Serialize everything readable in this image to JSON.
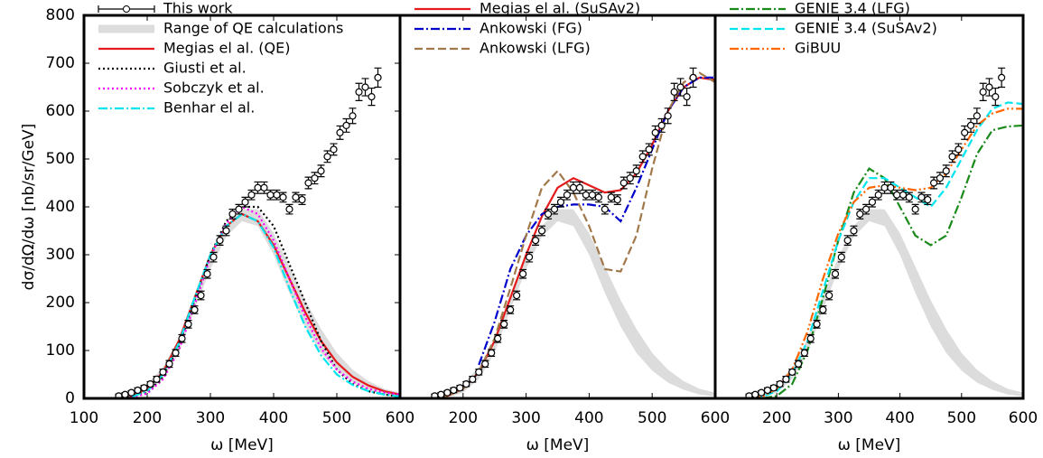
{
  "chart_data": [
    {
      "type": "line",
      "y_label": "dσ/dΩ/dω   [nb/sr/GeV]",
      "x_label": "ω    [MeV]",
      "legend": "upper left",
      "xlim": [
        100,
        600
      ],
      "xticks": [
        100,
        200,
        300,
        400,
        500,
        600
      ],
      "ylim": [
        0,
        800
      ],
      "yticks": [
        0,
        100,
        200,
        300,
        400,
        500,
        600,
        700,
        800
      ],
      "x": [
        125,
        150,
        175,
        200,
        225,
        250,
        275,
        300,
        325,
        350,
        375,
        400,
        425,
        450,
        475,
        500,
        525,
        550,
        575,
        600
      ],
      "series": [
        {
          "name": "This work",
          "type": "points",
          "color": "#000000",
          "x": [
            155,
            165,
            175,
            185,
            195,
            205,
            215,
            225,
            235,
            245,
            255,
            265,
            275,
            285,
            295,
            305,
            315,
            325,
            335,
            345,
            355,
            365,
            375,
            385,
            395,
            405,
            415,
            425,
            435,
            445,
            455,
            465,
            475,
            485,
            495,
            505,
            515,
            525,
            535,
            545,
            555,
            565
          ],
          "values": [
            5,
            8,
            12,
            17,
            22,
            30,
            40,
            55,
            72,
            95,
            125,
            155,
            185,
            215,
            260,
            295,
            330,
            350,
            385,
            395,
            410,
            425,
            440,
            440,
            425,
            425,
            420,
            395,
            420,
            415,
            450,
            460,
            475,
            505,
            520,
            555,
            570,
            590,
            640,
            650,
            630,
            670
          ],
          "errors": [
            4,
            4,
            4,
            5,
            5,
            5,
            6,
            6,
            7,
            7,
            8,
            8,
            8,
            9,
            9,
            10,
            10,
            10,
            10,
            10,
            10,
            10,
            12,
            12,
            10,
            10,
            10,
            10,
            10,
            10,
            12,
            12,
            12,
            12,
            12,
            14,
            14,
            16,
            18,
            18,
            18,
            20
          ]
        },
        {
          "name": "Range of QE calculations",
          "type": "band",
          "color": "#dcdcdc",
          "upper": [
            1,
            2,
            8,
            30,
            65,
            125,
            215,
            295,
            360,
            395,
            395,
            345,
            275,
            205,
            145,
            95,
            60,
            36,
            20,
            12
          ],
          "lower": [
            0,
            0,
            2,
            12,
            40,
            95,
            185,
            270,
            338,
            370,
            360,
            300,
            220,
            150,
            95,
            58,
            33,
            18,
            8,
            4
          ]
        },
        {
          "name": "Megias el al. (QE)",
          "color": "#e41a1c",
          "style": "solid",
          "values": [
            0,
            1,
            5,
            20,
            55,
            120,
            210,
            300,
            360,
            385,
            370,
            320,
            250,
            180,
            120,
            75,
            45,
            27,
            15,
            8
          ]
        },
        {
          "name": "Giusti et al.",
          "color": "#000000",
          "style": "dotted",
          "values": [
            0,
            0,
            2,
            12,
            45,
            110,
            205,
            300,
            370,
            400,
            400,
            360,
            280,
            200,
            120,
            60,
            30,
            15,
            8,
            4
          ]
        },
        {
          "name": "Sobczyk et al.",
          "color": "#ff00ff",
          "style": "dotted",
          "values": [
            0,
            0,
            2,
            10,
            40,
            100,
            195,
            295,
            365,
            400,
            385,
            330,
            250,
            170,
            105,
            60,
            35,
            20,
            12,
            8
          ]
        },
        {
          "name": "Benhar el al.",
          "color": "#00e5ee",
          "style": "dashdot",
          "values": [
            0,
            0,
            3,
            15,
            50,
            115,
            210,
            300,
            360,
            385,
            370,
            315,
            230,
            150,
            90,
            50,
            28,
            15,
            8,
            4
          ]
        }
      ]
    },
    {
      "type": "line",
      "x_label": "ω    [MeV]",
      "legend": "upper left",
      "xlim": [
        100,
        600
      ],
      "xticks": [
        200,
        300,
        400,
        500,
        600
      ],
      "ylim": [
        0,
        800
      ],
      "x": [
        125,
        150,
        175,
        200,
        225,
        250,
        275,
        300,
        325,
        350,
        375,
        400,
        425,
        450,
        475,
        500,
        525,
        550,
        575,
        600
      ],
      "series": [
        {
          "name": "Megias el al. (SuSAv2)",
          "color": "#e41a1c",
          "style": "solid",
          "values": [
            0,
            1,
            5,
            20,
            55,
            120,
            210,
            300,
            380,
            440,
            460,
            445,
            430,
            435,
            470,
            530,
            600,
            650,
            670,
            665
          ]
        },
        {
          "name": "Ankowski (FG)",
          "color": "#0000cc",
          "style": "dashdot",
          "values": [
            null,
            null,
            null,
            null,
            70,
            160,
            270,
            340,
            385,
            400,
            405,
            405,
            400,
            370,
            440,
            520,
            600,
            650,
            670,
            670
          ]
        },
        {
          "name": "Ankowski (LFG)",
          "color": "#a0784a",
          "style": "dashed",
          "values": [
            0,
            0,
            5,
            20,
            55,
            125,
            230,
            340,
            440,
            475,
            430,
            360,
            270,
            265,
            340,
            480,
            600,
            660,
            680,
            660
          ]
        }
      ]
    },
    {
      "type": "line",
      "x_label": "ω    [MeV]",
      "legend": "upper left",
      "xlim": [
        100,
        600
      ],
      "xticks": [
        200,
        300,
        400,
        500,
        600
      ],
      "ylim": [
        0,
        800
      ],
      "x": [
        125,
        150,
        175,
        200,
        225,
        250,
        275,
        300,
        325,
        350,
        375,
        400,
        425,
        450,
        475,
        500,
        525,
        550,
        575,
        600
      ],
      "series": [
        {
          "name": "GENIE 3.4 (LFG)",
          "color": "#1a8a1a",
          "style": "dashdot",
          "values": [
            0,
            0,
            0,
            5,
            30,
            100,
            210,
            330,
            430,
            480,
            460,
            400,
            340,
            320,
            340,
            420,
            510,
            560,
            568,
            570
          ]
        },
        {
          "name": "GENIE 3.4 (SuSAv2)",
          "color": "#00e5ee",
          "style": "dashed",
          "values": [
            0,
            0,
            3,
            15,
            50,
            120,
            225,
            330,
            410,
            460,
            460,
            440,
            420,
            400,
            440,
            500,
            560,
            605,
            618,
            615
          ]
        },
        {
          "name": "GiBUU",
          "color": "#ff6600",
          "style": "dashdotdot",
          "values": [
            0,
            0,
            3,
            20,
            60,
            140,
            250,
            345,
            410,
            440,
            445,
            440,
            435,
            440,
            470,
            520,
            570,
            595,
            605,
            605
          ]
        }
      ]
    }
  ]
}
